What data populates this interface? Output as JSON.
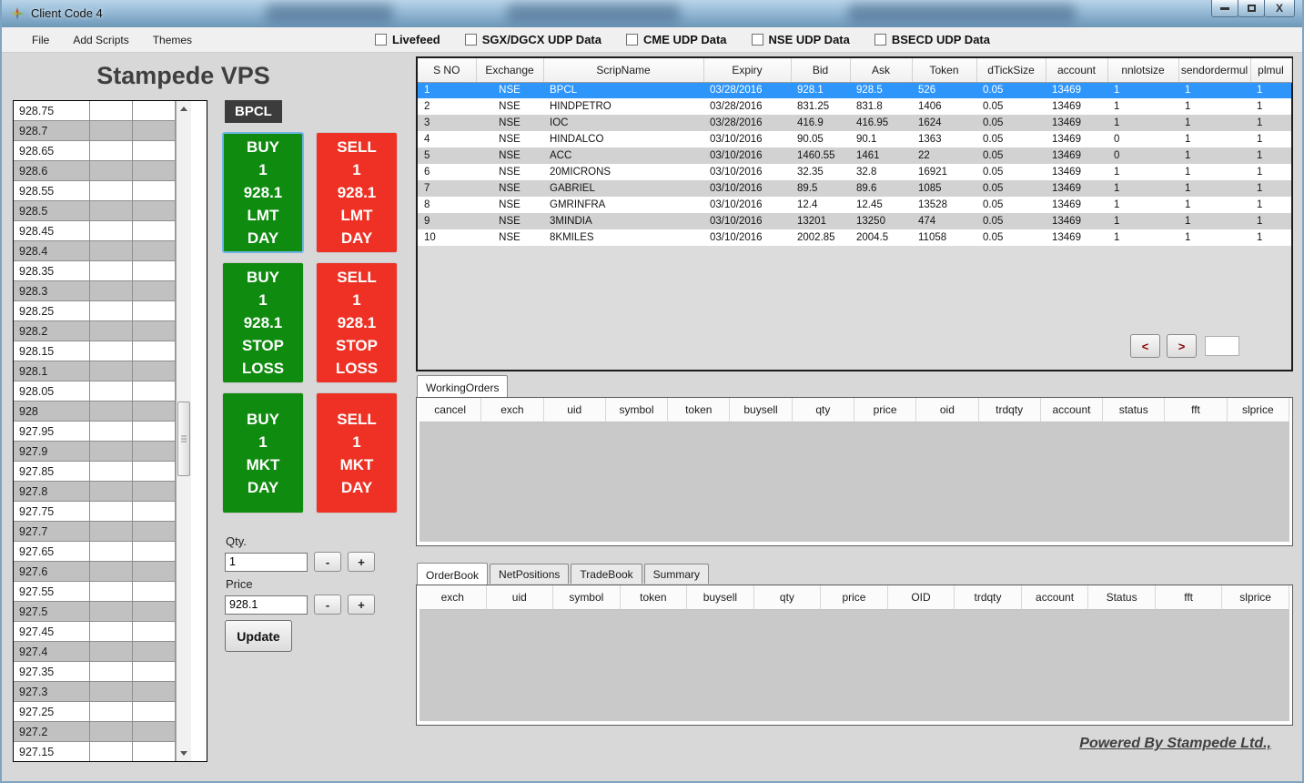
{
  "window": {
    "title": "Client Code 4"
  },
  "menu": {
    "items": [
      "File",
      "Add Scripts",
      "Themes"
    ],
    "checkboxes": [
      "Livefeed",
      "SGX/DGCX UDP Data",
      "CME UDP Data",
      "NSE UDP Data",
      "BSECD UDP Data"
    ]
  },
  "left": {
    "app_title": "Stampede VPS",
    "ladder_prices": [
      "928.75",
      "928.7",
      "928.65",
      "928.6",
      "928.55",
      "928.5",
      "928.45",
      "928.4",
      "928.35",
      "928.3",
      "928.25",
      "928.2",
      "928.15",
      "928.1",
      "928.05",
      "928",
      "927.95",
      "927.9",
      "927.85",
      "927.8",
      "927.75",
      "927.7",
      "927.65",
      "927.6",
      "927.55",
      "927.5",
      "927.45",
      "927.4",
      "927.35",
      "927.3",
      "927.25",
      "927.2",
      "927.15"
    ]
  },
  "trade_panel": {
    "symbol": "BPCL",
    "buttons": [
      {
        "id": "buy-lmt-button",
        "side": "buy",
        "lines": [
          "BUY",
          "1",
          "928.1",
          "LMT",
          "DAY"
        ]
      },
      {
        "id": "sell-lmt-button",
        "side": "sell",
        "lines": [
          "SELL",
          "1",
          "928.1",
          "LMT",
          "DAY"
        ]
      },
      {
        "id": "buy-stop-button",
        "side": "buy",
        "lines": [
          "BUY",
          "1",
          "928.1",
          "STOP",
          "LOSS"
        ]
      },
      {
        "id": "sell-stop-button",
        "side": "sell",
        "lines": [
          "SELL",
          "1",
          "928.1",
          "STOP",
          "LOSS"
        ]
      },
      {
        "id": "buy-mkt-button",
        "side": "buy",
        "lines": [
          "BUY",
          "1",
          "MKT",
          "DAY"
        ]
      },
      {
        "id": "sell-mkt-button",
        "side": "sell",
        "lines": [
          "SELL",
          "1",
          "MKT",
          "DAY"
        ]
      }
    ],
    "qty": {
      "label": "Qty.",
      "value": "1",
      "minus": "-",
      "plus": "+"
    },
    "price": {
      "label": "Price",
      "value": "928.1",
      "minus": "-",
      "plus": "+"
    },
    "update_label": "Update"
  },
  "instruments": {
    "columns": [
      "S NO",
      "Exchange",
      "ScripName",
      "Expiry",
      "Bid",
      "Ask",
      "Token",
      "dTickSize",
      "account",
      "nnlotsize",
      "sendordermul",
      "plmul"
    ],
    "rows": [
      [
        "1",
        "NSE",
        "BPCL",
        "03/28/2016",
        "928.1",
        "928.5",
        "526",
        "0.05",
        "13469",
        "1",
        "1",
        "1"
      ],
      [
        "2",
        "NSE",
        "HINDPETRO",
        "03/28/2016",
        "831.25",
        "831.8",
        "1406",
        "0.05",
        "13469",
        "1",
        "1",
        "1"
      ],
      [
        "3",
        "NSE",
        "IOC",
        "03/28/2016",
        "416.9",
        "416.95",
        "1624",
        "0.05",
        "13469",
        "1",
        "1",
        "1"
      ],
      [
        "4",
        "NSE",
        "HINDALCO",
        "03/10/2016",
        "90.05",
        "90.1",
        "1363",
        "0.05",
        "13469",
        "0",
        "1",
        "1"
      ],
      [
        "5",
        "NSE",
        "ACC",
        "03/10/2016",
        "1460.55",
        "1461",
        "22",
        "0.05",
        "13469",
        "0",
        "1",
        "1"
      ],
      [
        "6",
        "NSE",
        "20MICRONS",
        "03/10/2016",
        "32.35",
        "32.8",
        "16921",
        "0.05",
        "13469",
        "1",
        "1",
        "1"
      ],
      [
        "7",
        "NSE",
        "GABRIEL",
        "03/10/2016",
        "89.5",
        "89.6",
        "1085",
        "0.05",
        "13469",
        "1",
        "1",
        "1"
      ],
      [
        "8",
        "NSE",
        "GMRINFRA",
        "03/10/2016",
        "12.4",
        "12.45",
        "13528",
        "0.05",
        "13469",
        "1",
        "1",
        "1"
      ],
      [
        "9",
        "NSE",
        "3MINDIA",
        "03/10/2016",
        "13201",
        "13250",
        "474",
        "0.05",
        "13469",
        "1",
        "1",
        "1"
      ],
      [
        "10",
        "NSE",
        "8KMILES",
        "03/10/2016",
        "2002.85",
        "2004.5",
        "11058",
        "0.05",
        "13469",
        "1",
        "1",
        "1"
      ]
    ],
    "selected_row_index": 0,
    "pager": {
      "prev": "<",
      "next": ">"
    }
  },
  "working_orders": {
    "tab_label": "WorkingOrders",
    "columns": [
      "cancel",
      "exch",
      "uid",
      "symbol",
      "token",
      "buysell",
      "qty",
      "price",
      "oid",
      "trdqty",
      "account",
      "status",
      "fft",
      "slprice"
    ]
  },
  "order_book": {
    "tabs": [
      "OrderBook",
      "NetPositions",
      "TradeBook",
      "Summary"
    ],
    "active_tab": "OrderBook",
    "columns": [
      "exch",
      "uid",
      "symbol",
      "token",
      "buysell",
      "qty",
      "price",
      "OID",
      "trdqty",
      "account",
      "Status",
      "fft",
      "slprice"
    ]
  },
  "footer": {
    "powered_by": "Powered By Stampede Ltd.,"
  },
  "colors": {
    "buy_green": "#0f8b0f",
    "sell_red": "#ee3124",
    "selected_row": "#2e96fb",
    "symbol_badge_bg": "#3c3c3c",
    "titlebar_blue": "#8fb4d2"
  }
}
